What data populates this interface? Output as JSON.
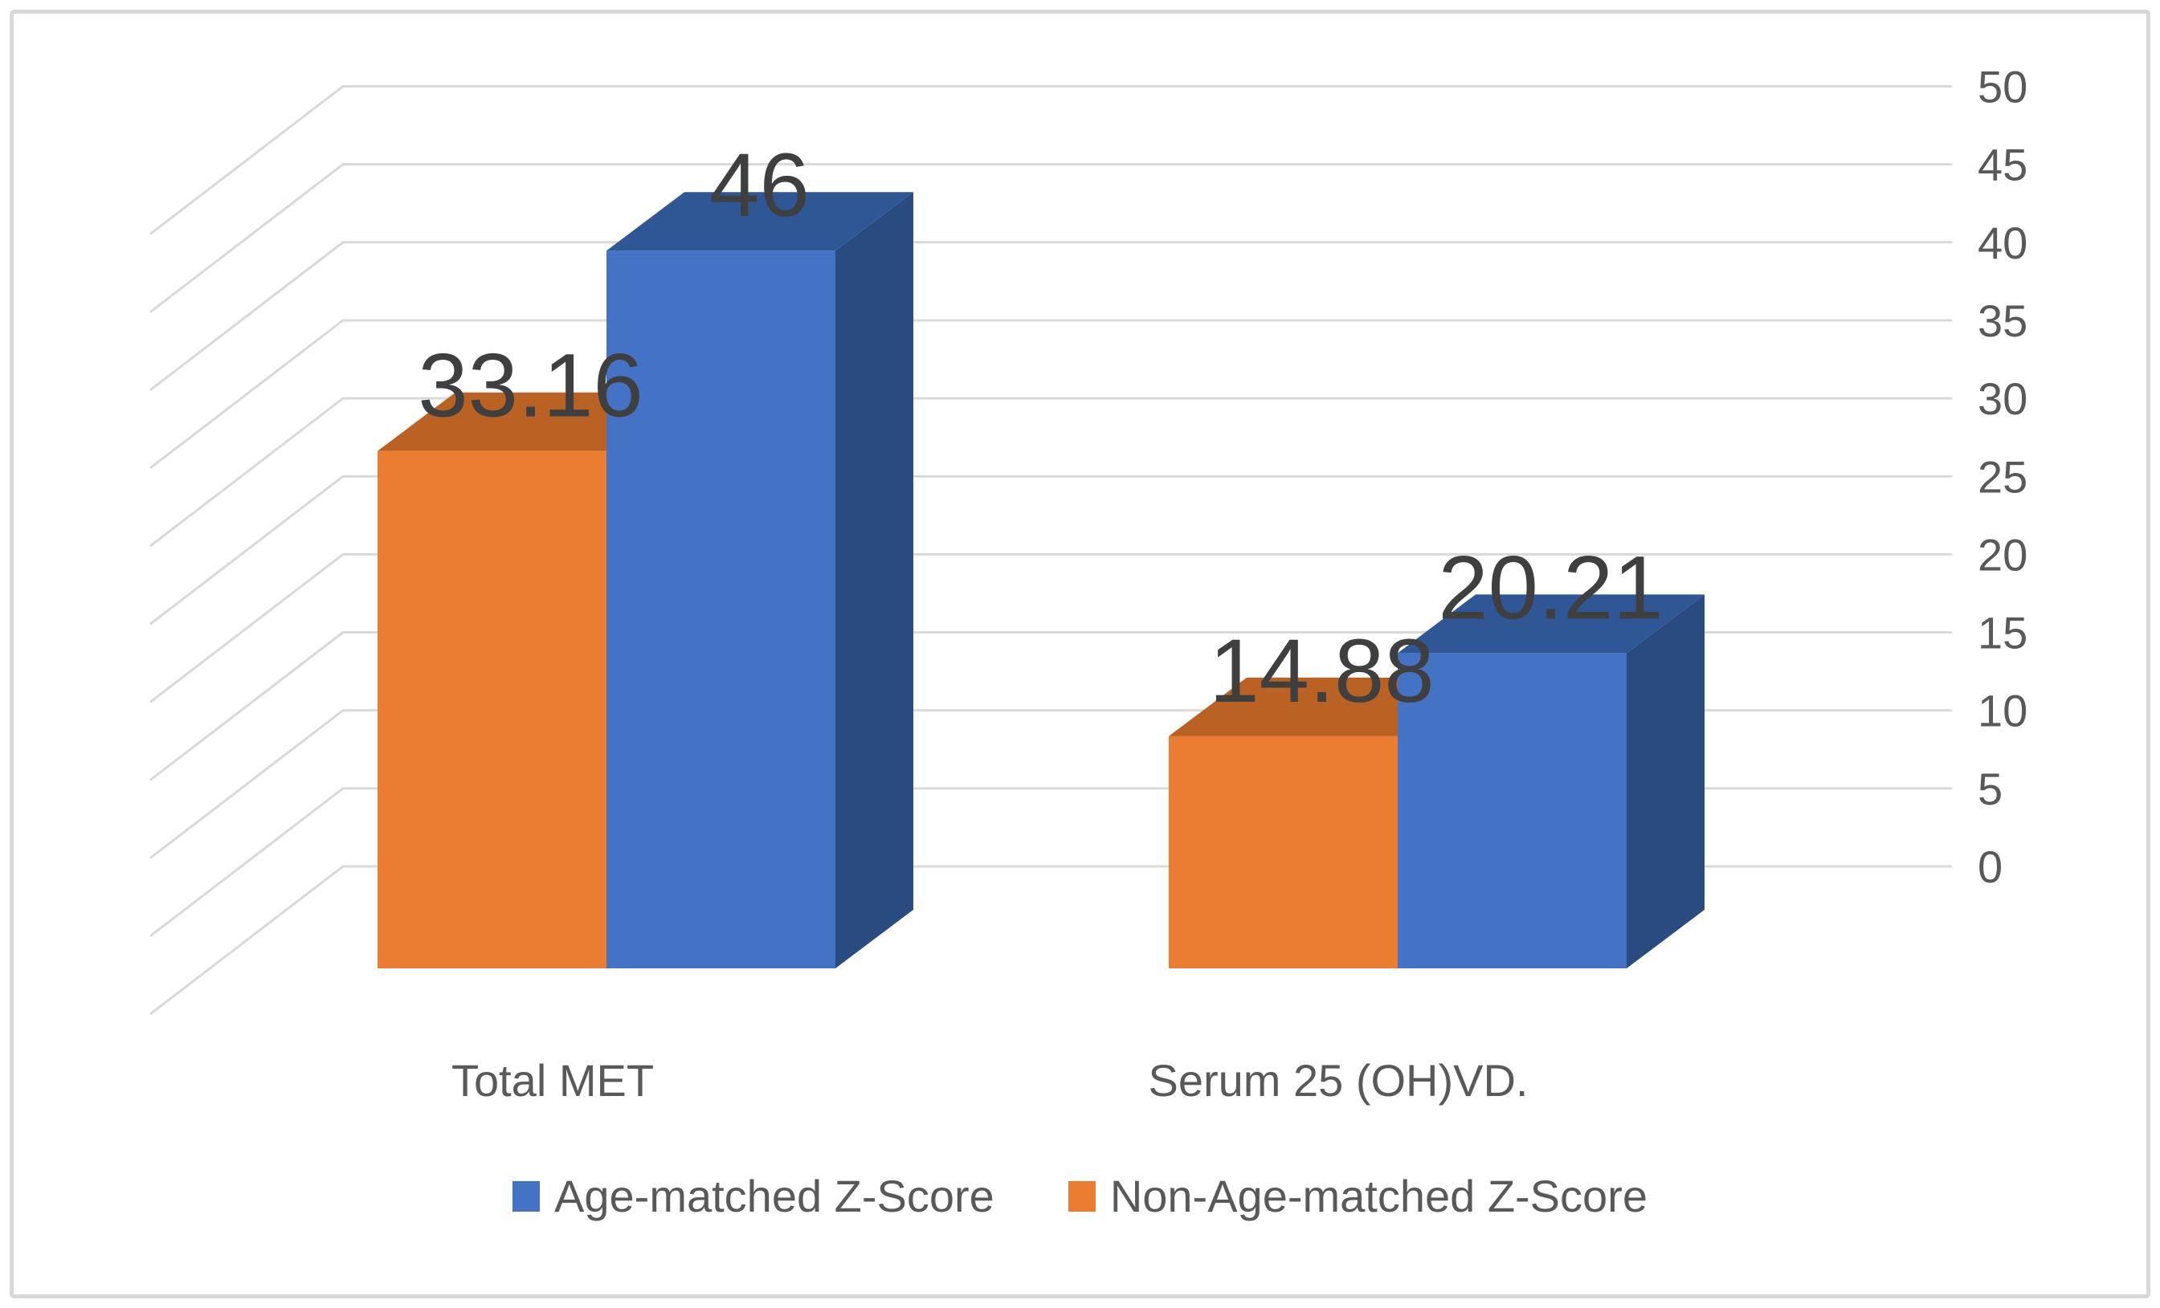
{
  "chart_data": {
    "type": "bar",
    "variant": "3d-clustered",
    "title": "",
    "categories": [
      "Total MET",
      "Serum 25 (OH)VD."
    ],
    "series": [
      {
        "name": "Non-Age-matched Z-Score",
        "color": "#EA7D31",
        "color_top": "#BA6124",
        "color_side": "#9C5120",
        "values": [
          33.16,
          14.88
        ],
        "labels": [
          "33.16",
          "14.88"
        ]
      },
      {
        "name": "Age-matched Z-Score",
        "color": "#4472C4",
        "color_top": "#2F5695",
        "color_side": "#2A4B80",
        "values": [
          46,
          20.21
        ],
        "labels": [
          "46",
          "20.21"
        ]
      }
    ],
    "y_axis": {
      "min": 0,
      "max": 50,
      "step": 5,
      "position": "right",
      "tick_labels": [
        "0",
        "5",
        "10",
        "15",
        "20",
        "25",
        "30",
        "35",
        "40",
        "45",
        "50"
      ]
    },
    "grid": true,
    "legend_position": "bottom",
    "legend_entries": [
      {
        "label": "Age-matched Z-Score",
        "color": "#4472C4"
      },
      {
        "label": "Non-Age-matched Z-Score",
        "color": "#EA7D31"
      }
    ]
  },
  "colors": {
    "gridline": "#D9D9D9",
    "axis_text": "#595959",
    "category_text": "#595959",
    "data_label_text": "#3F3F3F",
    "frame_border": "#D9D7D7",
    "background": "#FFFFFF"
  }
}
